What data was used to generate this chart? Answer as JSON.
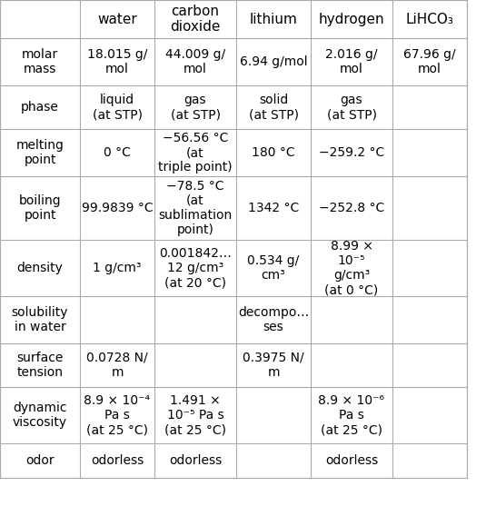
{
  "columns": [
    "",
    "water",
    "carbon\ndioxide",
    "lithium",
    "hydrogen",
    "LiHCO₃"
  ],
  "rows": [
    {
      "label": "molar\nmass",
      "water": "18.015 g/\nmol",
      "carbon_dioxide": "44.009 g/\nmol",
      "lithium": "6.94 g/mol",
      "hydrogen": "2.016 g/\nmol",
      "lihco3": "67.96 g/\nmol"
    },
    {
      "label": "phase",
      "water": "liquid\n(at STP)",
      "carbon_dioxide": "gas\n(at STP)",
      "lithium": "solid\n(at STP)",
      "hydrogen": "gas\n(at STP)",
      "lihco3": ""
    },
    {
      "label": "melting\npoint",
      "water": "0 °C",
      "carbon_dioxide": "−56.56 °C\n(at\ntriple point)",
      "lithium": "180 °C",
      "hydrogen": "−259.2 °C",
      "lihco3": ""
    },
    {
      "label": "boiling\npoint",
      "water": "99.9839 °C",
      "carbon_dioxide": "−78.5 °C\n(at\nsublimation\npoint)",
      "lithium": "1342 °C",
      "hydrogen": "−252.8 °C",
      "lihco3": ""
    },
    {
      "label": "density",
      "water": "1 g/cm³",
      "carbon_dioxide": "0.001842…\n12 g/cm³\n(at 20 °C)",
      "lithium": "0.534 g/\ncm³",
      "hydrogen": "8.99 ×\n10⁻⁵\ng/cm³\n(at 0 °C)",
      "lihco3": ""
    },
    {
      "label": "solubility\nin water",
      "water": "",
      "carbon_dioxide": "",
      "lithium": "decompo…\nses",
      "hydrogen": "",
      "lihco3": ""
    },
    {
      "label": "surface\ntension",
      "water": "0.0728 N/\nm",
      "carbon_dioxide": "",
      "lithium": "0.3975 N/\nm",
      "hydrogen": "",
      "lihco3": ""
    },
    {
      "label": "dynamic\nviscosity",
      "water": "8.9 × 10⁻⁴\nPa s\n(at 25 °C)",
      "carbon_dioxide": "1.491 ×\n10⁻⁵ Pa s\n(at 25 °C)",
      "lithium": "",
      "hydrogen": "8.9 × 10⁻⁶\nPa s\n(at 25 °C)",
      "lihco3": ""
    },
    {
      "label": "odor",
      "water": "odorless",
      "carbon_dioxide": "odorless",
      "lithium": "",
      "hydrogen": "odorless",
      "lihco3": ""
    }
  ],
  "header_bg": "#ffffff",
  "cell_bg": "#ffffff",
  "line_color": "#aaaaaa",
  "text_color": "#000000",
  "small_text_color": "#666666",
  "header_fontsize": 11,
  "cell_fontsize": 10,
  "small_fontsize": 8
}
